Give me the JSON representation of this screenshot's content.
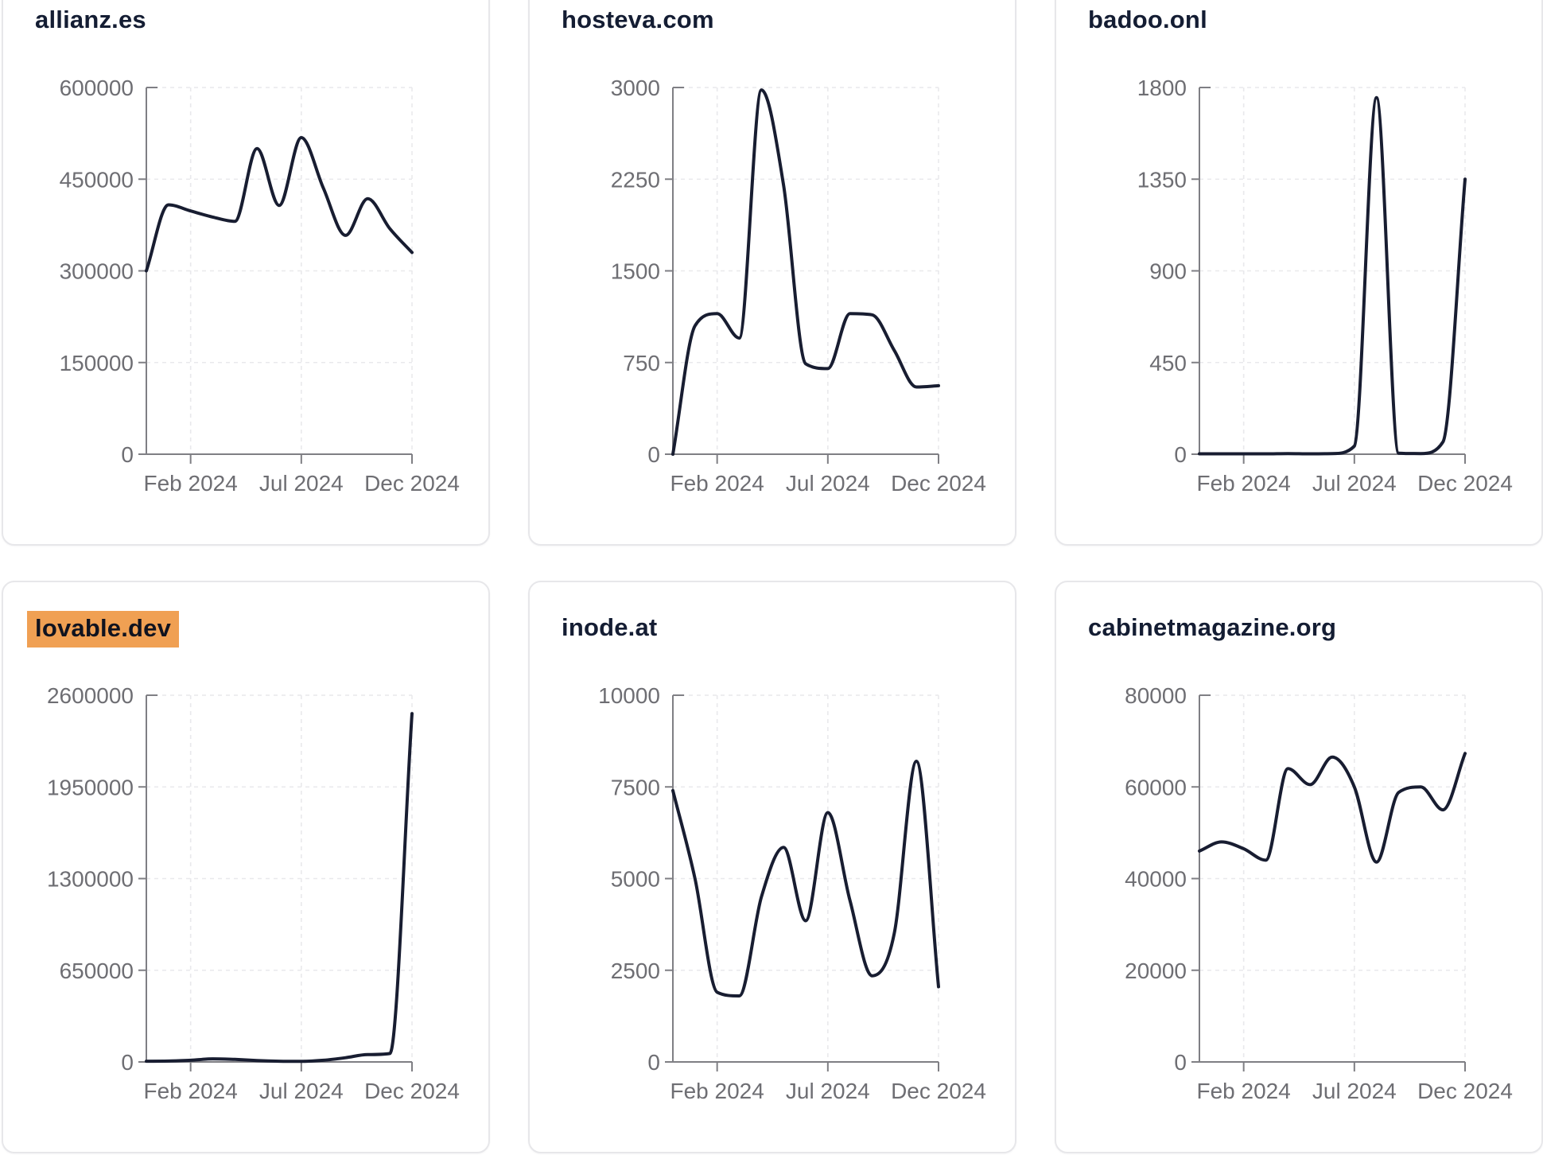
{
  "page": {
    "background": "#ffffff",
    "description": "grid of six domain traffic line charts"
  },
  "colors": {
    "line": "#181d31",
    "title": "#141d33",
    "tick_text": "#6e6e73",
    "axis": "#7f7f84",
    "grid": "#e9e9ec",
    "card_border": "#e7e7ea",
    "card_bg": "#ffffff",
    "title_highlight": "#f0a053"
  },
  "chart_data": {
    "type": "line",
    "x": [
      "Dec 2023",
      "Jan 2024",
      "Feb 2024",
      "Mar 2024",
      "Apr 2024",
      "May 2024",
      "Jun 2024",
      "Jul 2024",
      "Aug 2024",
      "Sep 2024",
      "Oct 2024",
      "Nov 2024",
      "Dec 2024"
    ],
    "x_tick_labels": [
      "Feb 2024",
      "Jul 2024",
      "Dec 2024"
    ],
    "x_tick_indices": [
      2,
      7,
      12
    ],
    "grid": true,
    "legend": "none",
    "charts": [
      {
        "title": "allianz.es",
        "highlighted": false,
        "ylim": [
          0,
          600000
        ],
        "y_ticks": [
          0,
          150000,
          300000,
          450000,
          600000
        ],
        "values": [
          300000,
          408000,
          398000,
          388000,
          381000,
          500000,
          407000,
          518000,
          435000,
          358000,
          418000,
          369000,
          330000
        ]
      },
      {
        "title": "hosteva.com",
        "highlighted": false,
        "ylim": [
          0,
          3000
        ],
        "y_ticks": [
          0,
          750,
          1500,
          2250,
          3000
        ],
        "values": [
          0,
          1050,
          1150,
          950,
          2980,
          2200,
          740,
          700,
          1150,
          1140,
          850,
          550,
          560
        ]
      },
      {
        "title": "badoo.onl",
        "highlighted": false,
        "ylim": [
          0,
          1800
        ],
        "y_ticks": [
          0,
          450,
          900,
          1350,
          1800
        ],
        "values": [
          2,
          2,
          2,
          2,
          3,
          2,
          3,
          40,
          1750,
          5,
          3,
          60,
          1350
        ]
      },
      {
        "title": "lovable.dev",
        "highlighted": true,
        "ylim": [
          0,
          2600000
        ],
        "y_ticks": [
          0,
          650000,
          1300000,
          1950000,
          2600000
        ],
        "values": [
          5000,
          6000,
          12000,
          22000,
          18000,
          10000,
          5000,
          4000,
          12000,
          30000,
          52000,
          60000,
          2470000
        ]
      },
      {
        "title": "inode.at",
        "highlighted": false,
        "ylim": [
          0,
          10000
        ],
        "y_ticks": [
          0,
          2500,
          5000,
          7500,
          10000
        ],
        "values": [
          7400,
          5000,
          1900,
          1800,
          4500,
          5850,
          3850,
          6800,
          4400,
          2350,
          3500,
          8200,
          2050
        ]
      },
      {
        "title": "cabinetmagazine.org",
        "highlighted": false,
        "ylim": [
          0,
          80000
        ],
        "y_ticks": [
          0,
          20000,
          40000,
          60000,
          80000
        ],
        "values": [
          46000,
          48000,
          46500,
          44000,
          64000,
          60500,
          66500,
          60000,
          43600,
          58800,
          60000,
          55000,
          67300
        ]
      }
    ]
  }
}
